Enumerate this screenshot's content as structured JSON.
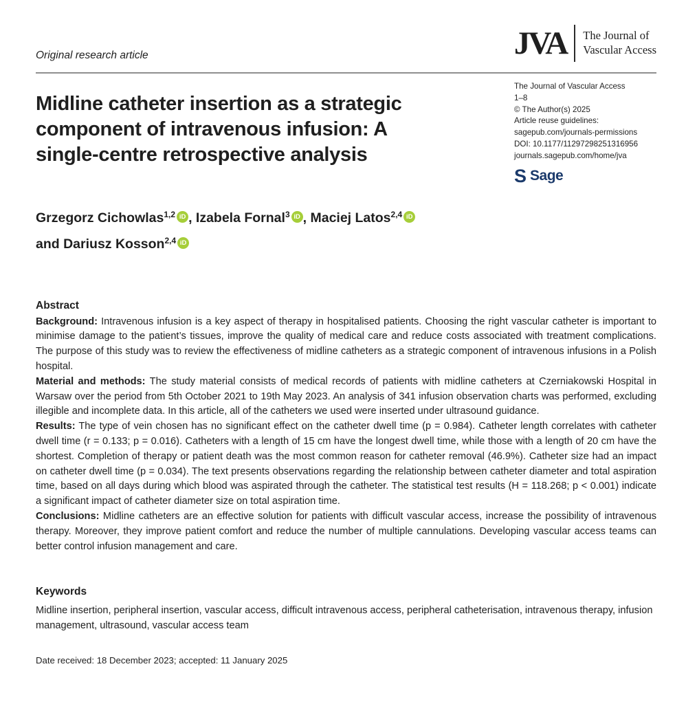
{
  "page": {
    "article_type": "Original research article"
  },
  "masthead": {
    "logo_abbr": "JVA",
    "journal_name_line1": "The Journal of",
    "journal_name_line2": "Vascular Access"
  },
  "journal_info": {
    "lines": [
      "The Journal of Vascular Access",
      "1–8",
      "© The Author(s) 2025",
      "Article reuse guidelines:",
      "sagepub.com/journals-permissions",
      "DOI: 10.1177/11297298251316956",
      "journals.sagepub.com/home/jva"
    ],
    "publisher": {
      "glyph": "S",
      "name": "Sage",
      "color": "#1b3a6b"
    }
  },
  "article": {
    "title_lines": [
      "Midline catheter insertion as a strategic",
      "component of intravenous infusion: A",
      "single-centre retrospective analysis"
    ],
    "authors": [
      {
        "sep": "",
        "name": "Grzegorz Cichowlas",
        "sup": "1,2"
      },
      {
        "sep": ", ",
        "name": "Izabela Fornal",
        "sup": "3"
      },
      {
        "sep": ", ",
        "name": "Maciej Latos",
        "sup": "2,4"
      },
      {
        "sep": "and ",
        "name": "Dariusz Kosson",
        "sup": "2,4"
      }
    ]
  },
  "abstract": {
    "heading": "Abstract",
    "sections": [
      {
        "label": "Background:",
        "text": " Intravenous infusion is a key aspect of therapy in hospitalised patients. Choosing the right vascular catheter is important to minimise damage to the patient’s tissues, improve the quality of medical care and reduce costs associated with treatment complications. The purpose of this study was to review the effectiveness of midline catheters as a strategic component of intravenous infusions in a Polish hospital."
      },
      {
        "label": "Material and methods:",
        "text": " The study material consists of medical records of patients with midline catheters at Czerniakowski Hospital in Warsaw over the period from 5th October 2021 to 19th May 2023. An analysis of 341 infusion observation charts was performed, excluding illegible and incomplete data. In this article, all of the catheters we used were inserted under ultrasound guidance."
      },
      {
        "label": "Results:",
        "text": " The type of vein chosen has no significant effect on the catheter dwell time (p = 0.984). Catheter length correlates with catheter dwell time (r = 0.133; p = 0.016). Catheters with a length of 15 cm have the longest dwell time, while those with a length of 20 cm have the shortest. Completion of therapy or patient death was the most common reason for catheter removal (46.9%). Catheter size had an impact on catheter dwell time (p = 0.034). The text presents observations regarding the relationship between catheter diameter and total aspiration time, based on all days during which blood was aspirated through the catheter. The statistical test results (H = 118.268; p < 0.001) indicate a significant impact of catheter diameter size on total aspiration time."
      },
      {
        "label": "Conclusions:",
        "text": " Midline catheters are an effective solution for patients with difficult vascular access, increase the possibility of intravenous therapy. Moreover, they improve patient comfort and reduce the number of multiple cannulations. Developing vascular access teams can better control infusion management and care."
      }
    ]
  },
  "keywords": {
    "heading": "Keywords",
    "text": "Midline insertion, peripheral insertion, vascular access, difficult intravenous access, peripheral catheterisation, intravenous therapy, infusion management, ultrasound, vascular access team"
  },
  "footer": {
    "date_line": "Date received: 18 December 2023; accepted: 11 January 2025"
  },
  "icons": {
    "orcid": {
      "glyph": "iD",
      "color": "#a6ce39"
    }
  }
}
